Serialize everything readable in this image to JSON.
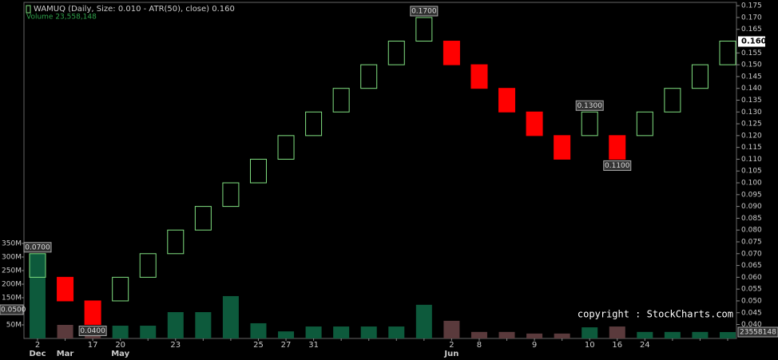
{
  "chart_data": {
    "type": "renko",
    "title": "WAMUQ (Daily, Size: 0.010 - ATR(50), close) 0.160",
    "volume_title": "Volume 23,558,148",
    "copyright": "copyright : StockCharts.com",
    "categories": [
      "2",
      null,
      "17",
      "20",
      null,
      "23",
      null,
      null,
      "25",
      "27",
      "31",
      null,
      null,
      null,
      null,
      "2",
      "8",
      null,
      "9",
      null,
      "10",
      "16",
      "24",
      null,
      null,
      null
    ],
    "month_labels": [
      "Dec",
      "Mar",
      null,
      "May",
      null,
      null,
      null,
      null,
      null,
      null,
      null,
      null,
      null,
      null,
      null,
      "Jun",
      null,
      null,
      null,
      null,
      null,
      null,
      null,
      null,
      null,
      null
    ],
    "open": [
      0.06,
      0.06,
      0.05,
      0.05,
      0.06,
      0.07,
      0.08,
      0.09,
      0.1,
      0.11,
      0.12,
      0.13,
      0.14,
      0.15,
      0.16,
      0.16,
      0.15,
      0.14,
      0.13,
      0.12,
      0.12,
      0.12,
      0.12,
      0.13,
      0.14,
      0.15
    ],
    "close": [
      0.07,
      0.05,
      0.04,
      0.06,
      0.07,
      0.08,
      0.09,
      0.1,
      0.11,
      0.12,
      0.13,
      0.14,
      0.15,
      0.16,
      0.17,
      0.15,
      0.14,
      0.13,
      0.12,
      0.11,
      0.13,
      0.11,
      0.13,
      0.14,
      0.15,
      0.16
    ],
    "volume": [
      312000000,
      50000000,
      47000000,
      47000000,
      47000000,
      97000000,
      97000000,
      156000000,
      56000000,
      26000000,
      44000000,
      44000000,
      44000000,
      44000000,
      124000000,
      65000000,
      24000000,
      24000000,
      18000000,
      18000000,
      41000000,
      44000000,
      24000000,
      24000000,
      24000000,
      23558148
    ],
    "up_color": "#80e080",
    "down_color": "#ff0000",
    "up_volume_color": "#0d5a3c",
    "down_volume_color": "#5a3a3c",
    "ylim": [
      0.0341,
      0.1764
    ],
    "yticks": [
      {
        "value": 0.04,
        "label": "0.040"
      },
      {
        "value": 0.045,
        "label": "0.045"
      },
      {
        "value": 0.05,
        "label": "0.050"
      },
      {
        "value": 0.055,
        "label": "0.055"
      },
      {
        "value": 0.06,
        "label": "0.060"
      },
      {
        "value": 0.065,
        "label": "0.065"
      },
      {
        "value": 0.07,
        "label": "0.070"
      },
      {
        "value": 0.075,
        "label": "0.075"
      },
      {
        "value": 0.08,
        "label": "0.080"
      },
      {
        "value": 0.085,
        "label": "0.085"
      },
      {
        "value": 0.09,
        "label": "0.090"
      },
      {
        "value": 0.095,
        "label": "0.095"
      },
      {
        "value": 0.1,
        "label": "0.100"
      },
      {
        "value": 0.105,
        "label": "0.105"
      },
      {
        "value": 0.11,
        "label": "0.110"
      },
      {
        "value": 0.115,
        "label": "0.115"
      },
      {
        "value": 0.12,
        "label": "0.120"
      },
      {
        "value": 0.125,
        "label": "0.125"
      },
      {
        "value": 0.13,
        "label": "0.130"
      },
      {
        "value": 0.135,
        "label": "0.135"
      },
      {
        "value": 0.14,
        "label": "0.140"
      },
      {
        "value": 0.145,
        "label": "0.145"
      },
      {
        "value": 0.15,
        "label": "0.150"
      },
      {
        "value": 0.155,
        "label": "0.155"
      },
      {
        "value": 0.165,
        "label": "0.165"
      },
      {
        "value": 0.17,
        "label": "0.170"
      },
      {
        "value": 0.175,
        "label": "0.175"
      }
    ],
    "y2lim": [
      0,
      1238000000
    ],
    "y2ticks": [
      {
        "value": 50000000,
        "label": "50M"
      },
      {
        "value": 150000000,
        "label": "150M"
      },
      {
        "value": 200000000,
        "label": "200M"
      },
      {
        "value": 250000000,
        "label": "250M"
      },
      {
        "value": 300000000,
        "label": "300M"
      },
      {
        "value": 350000000,
        "label": "350M"
      }
    ],
    "annotations": [
      {
        "brick": 0,
        "value": 0.07,
        "label": "0.0700",
        "position": "above"
      },
      {
        "brick": 2,
        "value": 0.04,
        "label": "0.0400",
        "position": "below"
      },
      {
        "brick": 14,
        "value": 0.17,
        "label": "0.1700",
        "position": "above"
      },
      {
        "brick": 20,
        "value": 0.13,
        "label": "0.1300",
        "position": "above"
      },
      {
        "brick": 21,
        "value": 0.11,
        "label": "0.1100",
        "position": "below"
      }
    ],
    "last_price": {
      "value": 0.16,
      "label": "0.160"
    },
    "left_price_tag": {
      "value": 0.05,
      "label": "0.0500"
    },
    "last_volume": 23558148
  }
}
